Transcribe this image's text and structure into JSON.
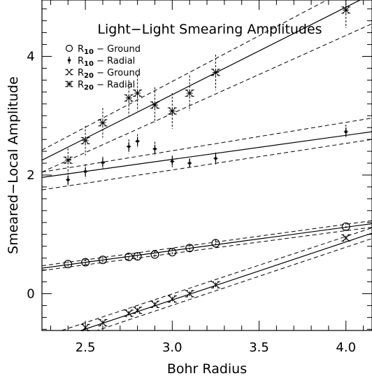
{
  "chart_data": {
    "type": "scatter",
    "title": "Light−Light Smearing Amplitudes",
    "xlabel": "Bohr Radius",
    "ylabel": "Smeared−Local Amplitude",
    "xlim": [
      2.25,
      4.15
    ],
    "ylim": [
      -0.62,
      4.95
    ],
    "x_ticks": [
      2.5,
      3.0,
      3.5,
      4.0
    ],
    "x_tick_labels": [
      "2.5",
      "3.0",
      "3.5",
      "4.0"
    ],
    "y_ticks": [
      0,
      2,
      4
    ],
    "y_tick_labels": [
      "0",
      "2",
      "4"
    ],
    "grid": false,
    "legend_position": "top-left",
    "series": [
      {
        "name": "R10 − Ground",
        "label_main": "R",
        "label_sub": "10",
        "label_tail": " − Ground",
        "marker": "circle",
        "x": [
          2.4,
          2.5,
          2.6,
          2.75,
          2.8,
          2.9,
          3.0,
          3.1,
          3.25,
          4.0
        ],
        "y": [
          0.5,
          0.53,
          0.57,
          0.62,
          0.63,
          0.66,
          0.7,
          0.77,
          0.85,
          1.13
        ],
        "err": [
          0.05,
          0.05,
          0.05,
          0.07,
          0.07,
          0.06,
          0.06,
          0.06,
          0.06,
          0.07
        ],
        "fit": [
          2.25,
          0.43,
          4.15,
          1.18
        ],
        "band_upper": [
          2.25,
          0.47,
          4.15,
          1.23
        ],
        "band_lower": [
          2.25,
          0.39,
          4.15,
          1.12
        ]
      },
      {
        "name": "R10 − Radial",
        "label_main": "R",
        "label_sub": "10",
        "label_tail": " − Radial",
        "marker": "plus",
        "x": [
          2.4,
          2.5,
          2.6,
          2.75,
          2.8,
          2.9,
          3.0,
          3.1,
          3.25,
          4.0
        ],
        "y": [
          1.92,
          2.06,
          2.21,
          2.48,
          2.57,
          2.44,
          2.23,
          2.2,
          2.28,
          2.73
        ],
        "err": [
          0.12,
          0.12,
          0.1,
          0.12,
          0.12,
          0.12,
          0.1,
          0.08,
          0.1,
          0.12
        ],
        "fit": [
          2.25,
          1.96,
          4.15,
          2.73
        ],
        "band_upper": [
          2.25,
          2.05,
          4.15,
          2.96
        ],
        "band_lower": [
          2.25,
          1.75,
          4.15,
          2.6
        ]
      },
      {
        "name": "R20 − Ground",
        "label_main": "R",
        "label_sub": "20",
        "label_tail": " − Ground",
        "marker": "x-tee",
        "x": [
          2.5,
          2.6,
          2.75,
          2.8,
          2.9,
          3.0,
          3.1,
          3.25,
          4.0
        ],
        "y": [
          -0.57,
          -0.49,
          -0.33,
          -0.28,
          -0.18,
          -0.09,
          0.0,
          0.15,
          0.94
        ],
        "err": [
          0.04,
          0.04,
          0.04,
          0.04,
          0.04,
          0.04,
          0.04,
          0.04,
          0.04
        ],
        "fit": [
          2.25,
          -0.84,
          4.15,
          1.02
        ],
        "band_upper": [
          2.25,
          -0.73,
          4.15,
          1.11
        ],
        "band_lower": [
          2.25,
          -0.93,
          4.15,
          0.93
        ]
      },
      {
        "name": "R20 − Radial",
        "label_main": "R",
        "label_sub": "20",
        "label_tail": " − Radial",
        "marker": "star",
        "x": [
          2.4,
          2.5,
          2.6,
          2.75,
          2.8,
          2.9,
          3.0,
          3.1,
          3.25,
          4.0
        ],
        "y": [
          2.25,
          2.58,
          2.88,
          3.3,
          3.38,
          3.18,
          3.08,
          3.38,
          3.73,
          4.78
        ],
        "err": [
          0.2,
          0.25,
          0.25,
          0.3,
          0.3,
          0.3,
          0.3,
          0.3,
          0.3,
          0.3
        ],
        "fit": [
          2.25,
          2.25,
          4.15,
          5.05
        ],
        "band_upper": [
          2.25,
          2.42,
          4.15,
          5.35
        ],
        "band_lower": [
          2.25,
          2.05,
          4.15,
          4.55
        ]
      }
    ]
  }
}
